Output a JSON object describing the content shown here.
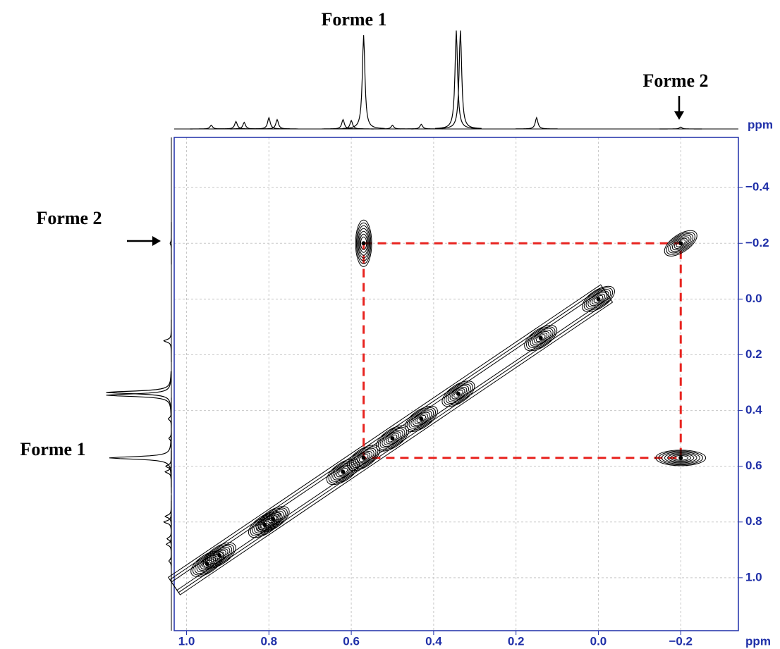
{
  "chart_data": {
    "type": "contour",
    "annotations": [
      "Forme 1",
      "Forme 2",
      "Forme 2",
      "Forme 1"
    ],
    "xlabel": "ppm",
    "ylabel": "ppm",
    "xlim": [
      1.03,
      -0.34
    ],
    "ylim": [
      -0.58,
      1.19
    ],
    "xticks": [
      {
        "value": 1,
        "label": "1.0"
      },
      {
        "value": 0.8,
        "label": "0.8"
      },
      {
        "value": 0.6,
        "label": "0.6"
      },
      {
        "value": 0.4,
        "label": "0.4"
      },
      {
        "value": 0.2,
        "label": "0.2"
      },
      {
        "value": 0,
        "label": "0.0"
      },
      {
        "value": -0.2,
        "label": "−0.2"
      }
    ],
    "yticks": [
      {
        "value": -0.4,
        "label": "−0.4"
      },
      {
        "value": -0.2,
        "label": "−0.2"
      },
      {
        "value": 0,
        "label": "0.0"
      },
      {
        "value": 0.2,
        "label": "0.2"
      },
      {
        "value": 0.4,
        "label": "0.4"
      },
      {
        "value": 0.6,
        "label": "0.6"
      },
      {
        "value": 0.8,
        "label": "0.8"
      },
      {
        "value": 1,
        "label": "1.0"
      }
    ],
    "grid": true,
    "peaks": {
      "x": [
        0.95,
        0.92,
        0.81,
        0.79,
        0.62,
        0.57,
        0.5,
        0.43,
        0.34,
        0.14,
        0.0,
        -0.2,
        0.57,
        -0.2
      ],
      "y": [
        0.95,
        0.92,
        0.81,
        0.79,
        0.62,
        0.57,
        0.5,
        0.43,
        0.34,
        0.14,
        0.0,
        -0.2,
        -0.2,
        0.57
      ]
    },
    "projection": {
      "x": [
        0.94,
        0.88,
        0.86,
        0.8,
        0.78,
        0.62,
        0.6,
        0.57,
        0.5,
        0.43,
        0.345,
        0.335,
        0.15,
        -0.2
      ],
      "height": [
        4,
        8,
        7,
        12,
        10,
        10,
        9,
        100,
        4,
        5,
        105,
        105,
        12,
        2
      ]
    },
    "color": "#000000",
    "box_color": "#e8231f",
    "axis_color": "#1f2fa8"
  }
}
